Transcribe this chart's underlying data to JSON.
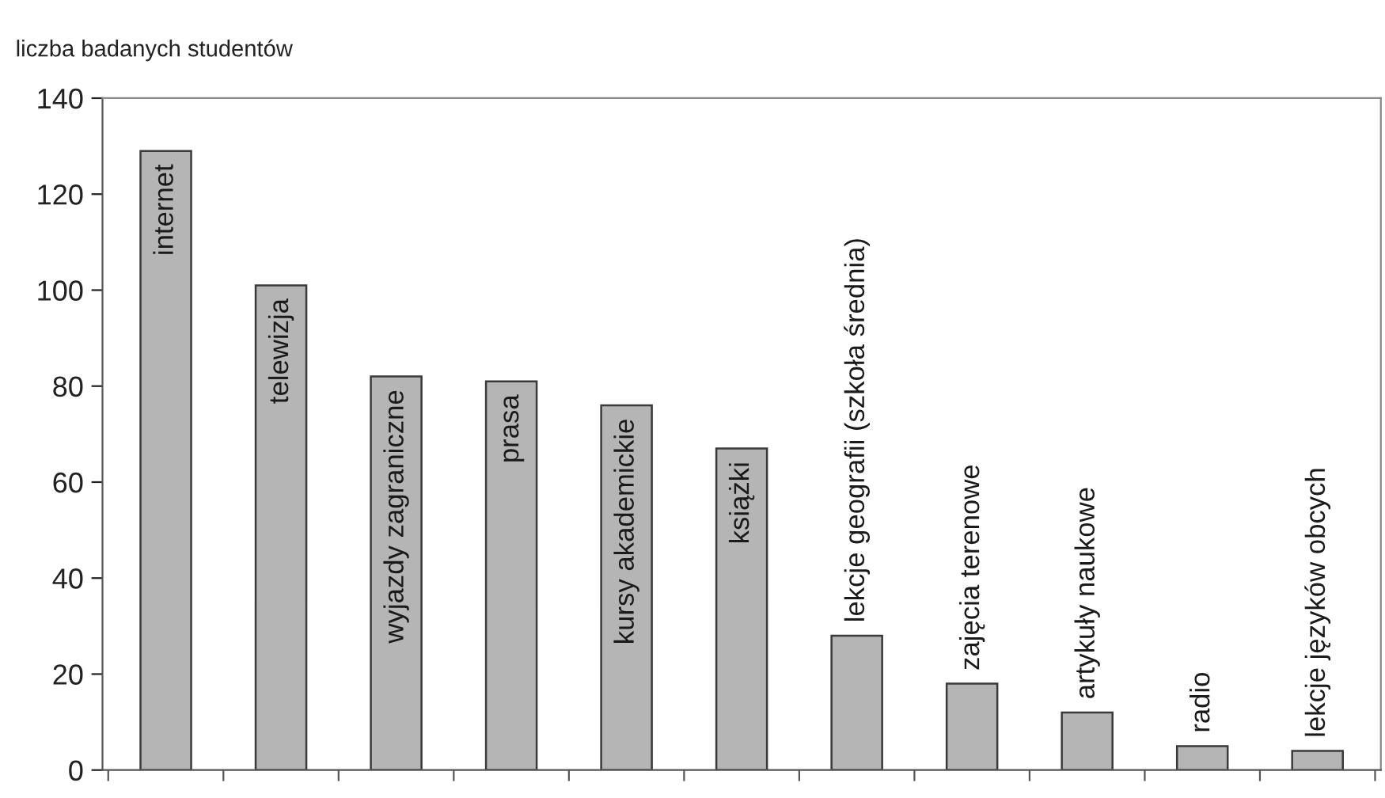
{
  "chart_data": {
    "type": "bar",
    "ylabel": "liczba badanych studentów",
    "categories": [
      "internet",
      "telewizja",
      "wyjazdy zagraniczne",
      "prasa",
      "kursy akademickie",
      "książki",
      "lekcje geografii (szkoła średnia)",
      "zajęcia terenowe",
      "artykuły naukowe",
      "radio",
      "lekcje języków obcych"
    ],
    "values": [
      129,
      101,
      82,
      81,
      76,
      67,
      28,
      18,
      12,
      5,
      4
    ],
    "color": "#b5b5b5",
    "ylim": [
      0,
      140
    ],
    "yticks": [
      0,
      20,
      40,
      60,
      80,
      100,
      120,
      140
    ],
    "grid": false
  }
}
